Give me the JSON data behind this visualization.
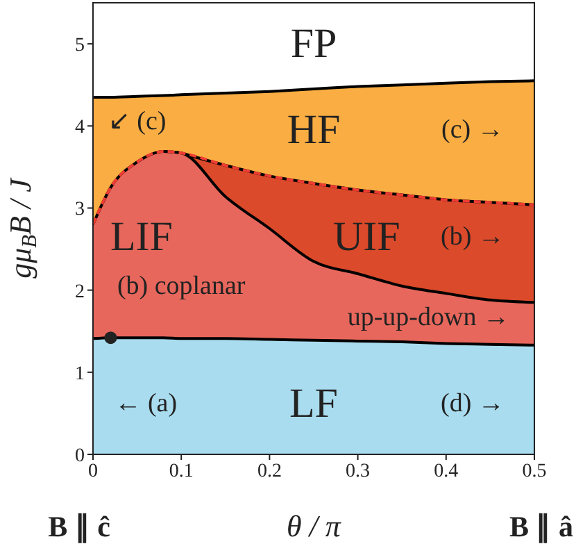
{
  "chart_data": {
    "type": "area",
    "xlabel": "θ / π",
    "ylabel": "gμ$_{B}$B / J",
    "x": [
      0,
      0.02,
      0.05,
      0.08,
      0.1,
      0.15,
      0.2,
      0.25,
      0.3,
      0.35,
      0.4,
      0.45,
      0.5
    ],
    "series": [
      {
        "color": "#f9ad42",
        "values": [
          4.35,
          4.35,
          4.36,
          4.37,
          4.38,
          4.4,
          4.42,
          4.45,
          4.48,
          4.5,
          4.52,
          4.54,
          4.55
        ]
      },
      {
        "color": "#db4a2a",
        "values": [
          null,
          null,
          null,
          null,
          3.67,
          3.52,
          3.39,
          3.3,
          3.22,
          3.16,
          3.1,
          3.07,
          3.04
        ]
      },
      {
        "color": "#e8675c",
        "values": [
          2.8,
          3.25,
          3.56,
          3.69,
          3.67,
          3.14,
          2.75,
          2.35,
          2.2,
          2.05,
          1.96,
          1.88,
          1.85
        ]
      },
      {
        "color": "#a9dcef",
        "values": [
          1.41,
          1.42,
          1.42,
          1.42,
          1.41,
          1.41,
          1.4,
          1.39,
          1.38,
          1.37,
          1.35,
          1.34,
          1.33
        ]
      },
      {
        "type": "line",
        "color": "#f03c32",
        "line_style": "dashed",
        "values": [
          2.8,
          3.25,
          3.56,
          3.69,
          3.67,
          3.52,
          3.39,
          3.3,
          3.22,
          3.16,
          3.1,
          3.07,
          3.04
        ]
      },
      {
        "type": "scatter",
        "color": "#222222",
        "marker": "circle",
        "x": [
          0.02
        ],
        "values": [
          1.42
        ]
      }
    ],
    "xlim": [
      0,
      0.5
    ],
    "xticks": [
      0,
      0.1,
      0.2,
      0.3,
      0.4,
      0.5
    ],
    "ylim": [
      0,
      5.5
    ],
    "yticks": [
      0,
      1,
      2,
      3,
      4,
      5
    ],
    "annotations": [
      "B ∥ ĉ",
      "B ∥ â",
      "FP",
      "HF",
      "LIF",
      "UIF",
      "LF",
      "↙ (c)",
      "(c) →",
      "(b) →",
      "(b) coplanar",
      "up-up-down →",
      "← (a)",
      "(d) →"
    ]
  }
}
